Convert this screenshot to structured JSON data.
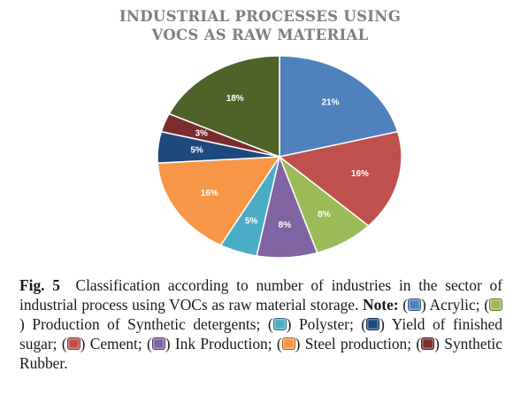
{
  "chart_data": {
    "type": "pie",
    "title_lines": [
      "INDUSTRIAL PROCESSES USING",
      "VOCS AS RAW MATERIAL"
    ],
    "slices": [
      {
        "label": "21%",
        "value": 21,
        "color": "#4f81bd"
      },
      {
        "label": "16%",
        "value": 16,
        "color": "#c0504d"
      },
      {
        "label": "8%",
        "value": 8,
        "color": "#9bbb59"
      },
      {
        "label": "8%",
        "value": 8,
        "color": "#8064a2"
      },
      {
        "label": "5%",
        "value": 5,
        "color": "#4bacc6"
      },
      {
        "label": "16%",
        "value": 16,
        "color": "#f79646"
      },
      {
        "label": "5%",
        "value": 5,
        "color": "#1f497d"
      },
      {
        "label": "3%",
        "value": 3,
        "color": "#7b2c2c"
      },
      {
        "label": "18%",
        "value": 18,
        "color": "#4f6228"
      }
    ]
  },
  "caption": {
    "fig_label": "Fig. 5",
    "text": "Classification according to number of industries in the sector of industrial process using VOCs as raw material storage.",
    "note_label": "Note:",
    "legend": [
      {
        "name": "Acrylic",
        "color": "#4f81bd"
      },
      {
        "name": "Production of Synthetic detergents",
        "color": "#9bbb59"
      },
      {
        "name": "Polyster",
        "color": "#4bacc6"
      },
      {
        "name": "Yield of finished sugar",
        "color": "#1f497d"
      },
      {
        "name": "Cement",
        "color": "#c0504d"
      },
      {
        "name": "Ink Production",
        "color": "#8064a2"
      },
      {
        "name": "Steel production",
        "color": "#f79646"
      },
      {
        "name": "Synthetic Rubber",
        "color": "#7b2c2c"
      }
    ]
  }
}
